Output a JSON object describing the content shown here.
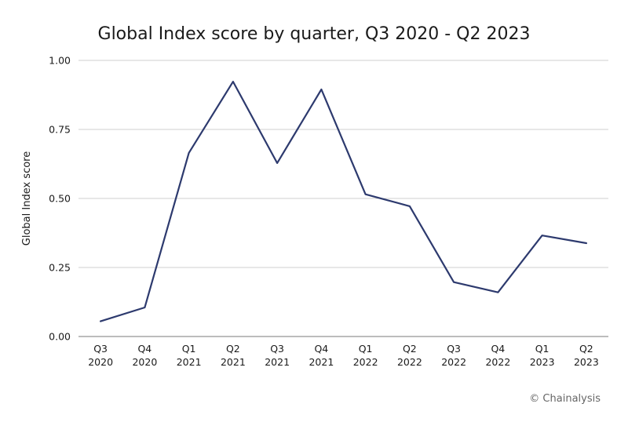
{
  "chart_data": {
    "type": "line",
    "title": "Global Index score by quarter, Q3 2020 - Q2 2023",
    "xlabel": "",
    "ylabel": "Global Index score",
    "categories": [
      [
        "Q3",
        "2020"
      ],
      [
        "Q4",
        "2020"
      ],
      [
        "Q1",
        "2021"
      ],
      [
        "Q2",
        "2021"
      ],
      [
        "Q3",
        "2021"
      ],
      [
        "Q4",
        "2021"
      ],
      [
        "Q1",
        "2022"
      ],
      [
        "Q2",
        "2022"
      ],
      [
        "Q3",
        "2022"
      ],
      [
        "Q4",
        "2022"
      ],
      [
        "Q1",
        "2023"
      ],
      [
        "Q2",
        "2023"
      ]
    ],
    "series": [
      {
        "values": [
          0.055,
          0.105,
          0.665,
          0.923,
          0.628,
          0.895,
          0.515,
          0.472,
          0.197,
          0.16,
          0.366,
          0.338
        ]
      }
    ],
    "ylim": [
      0,
      1
    ],
    "yticks": [
      "0.00",
      "0.25",
      "0.50",
      "0.75",
      "1.00"
    ],
    "grid": true,
    "legend": "none",
    "line_color": "#2d3a6e"
  },
  "credit": "© Chainalysis"
}
